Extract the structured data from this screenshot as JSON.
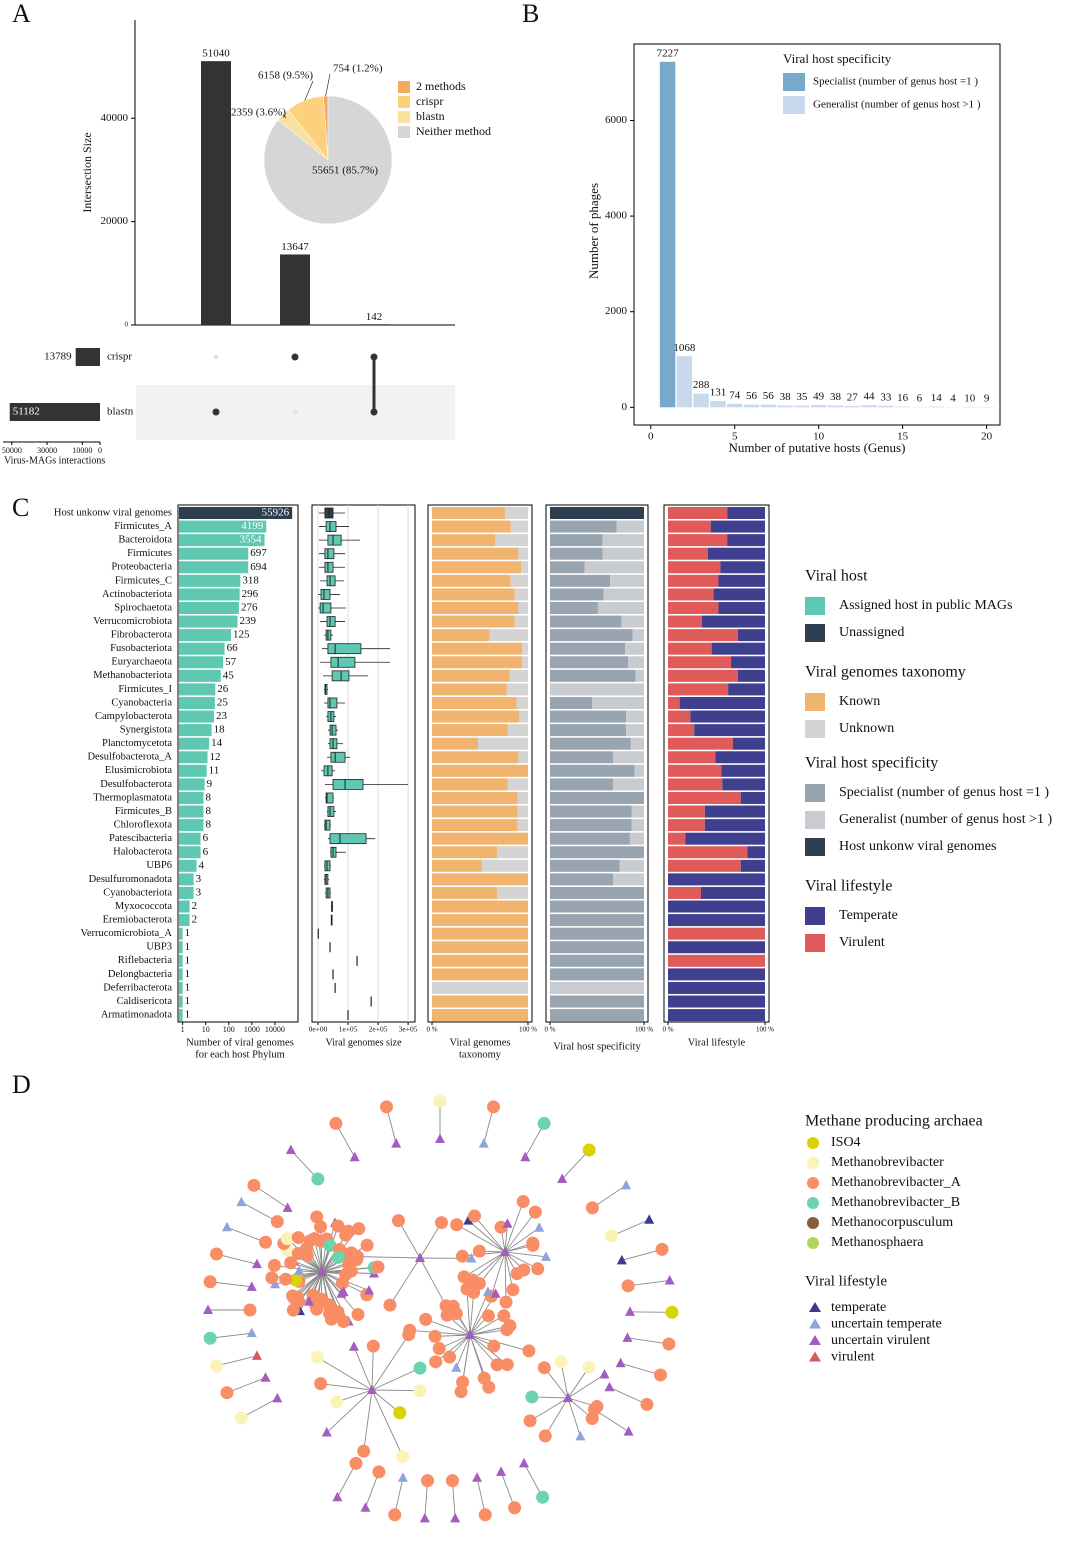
{
  "chart_data": [
    {
      "type": "upset",
      "panel": "A",
      "y_label": "Intersection Size",
      "values": [
        51040,
        13647,
        142
      ],
      "ylim": [
        0,
        59000
      ],
      "yticks": [
        0,
        20000,
        40000
      ],
      "sets": [
        "crispr",
        "blastn"
      ],
      "set_sizes": [
        13789,
        51182
      ],
      "set_xlim": [
        55000,
        0
      ],
      "set_xticks": [
        50000,
        30000,
        10000,
        0
      ],
      "set_x_label": "Virus-MAGs interactions",
      "membership": [
        [
          false,
          true
        ],
        [
          true,
          false
        ],
        [
          true,
          true
        ]
      ],
      "color": "#333333"
    },
    {
      "type": "pie",
      "categories": [
        "2 methods",
        "crispr",
        "blastn",
        "Neither method"
      ],
      "values": [
        754,
        6158,
        2359,
        55651
      ],
      "value_labels": [
        "754 (1.2%)",
        "6158 (9.5%)",
        "2359 (3.6%)",
        "55651 (85.7%)"
      ],
      "colors": [
        "#f4a95b",
        "#fbd17d",
        "#f9e2a0",
        "#d6d6d6"
      ],
      "direction": "counterclockwise"
    },
    {
      "type": "bar",
      "panel": "B",
      "orientation": "vertical",
      "x": [
        1,
        2,
        3,
        4,
        5,
        6,
        7,
        8,
        9,
        10,
        11,
        12,
        13,
        14,
        15,
        16,
        17,
        18,
        19,
        20
      ],
      "series": [
        {
          "name": "Specialist (number of genus host =1 )",
          "color": "#77a9cc",
          "values": [
            7227,
            null,
            null,
            null,
            null,
            null,
            null,
            null,
            null,
            null,
            null,
            null,
            null,
            null,
            null,
            null,
            null,
            null,
            null,
            null
          ]
        },
        {
          "name": "Generalist (number of genus host >1 )",
          "color": "#c9d9ec",
          "values": [
            null,
            1068,
            288,
            131,
            74,
            56,
            56,
            38,
            35,
            49,
            38,
            27,
            44,
            33,
            16,
            6,
            14,
            4,
            10,
            9
          ]
        }
      ],
      "legend_title": "Viral host specificity",
      "x_label": "Number of putative hosts (Genus)",
      "y_label": "Number of phages",
      "xlim": [
        -1,
        20.8
      ],
      "ylim": [
        -370,
        7600
      ],
      "xticks": [
        0,
        5,
        10,
        15,
        20
      ],
      "yticks": [
        0,
        2000,
        4000,
        6000
      ]
    },
    {
      "type": "bar",
      "panel": "C",
      "orientation": "horizontal",
      "xscale": "log",
      "categories": [
        "Host unkonw viral genomes",
        "Firmicutes_A",
        "Bacteroidota",
        "Firmicutes",
        "Proteobacteria",
        "Firmicutes_C",
        "Actinobacteriota",
        "Spirochaetota",
        "Verrucomicrobiota",
        "Fibrobacterota",
        "Fusobacteriota",
        "Euryarchaeota",
        "Methanobacteriota",
        "Firmicutes_I",
        "Cyanobacteria",
        "Campylobacterota",
        "Synergistota",
        "Planctomycetota",
        "Desulfobacterota_A",
        "Elusimicrobiota",
        "Desulfobacterota",
        "Thermoplasmatota",
        "Firmicutes_B",
        "Chloroflexota",
        "Patescibacteria",
        "Halobacterota",
        "UBP6",
        "Desulfuromonadota",
        "Cyanobacteriota",
        "Myxococcota",
        "Eremiobacterota",
        "Verrucomicrobiota_A",
        "UBP3",
        "Riflebacteria",
        "Delongbacteria",
        "Deferribacterota",
        "Caldisericota",
        "Armatimonadota"
      ],
      "series": [
        {
          "name": "Assigned host in public MAGs",
          "color": "#5ec8b2",
          "values": [
            null,
            4199,
            3554,
            697,
            694,
            318,
            296,
            276,
            239,
            125,
            66,
            57,
            45,
            26,
            25,
            23,
            18,
            14,
            12,
            11,
            9,
            8,
            8,
            8,
            6,
            6,
            4,
            3,
            3,
            2,
            2,
            1,
            1,
            1,
            1,
            1,
            1,
            1
          ]
        },
        {
          "name": "Unassigned",
          "color": "#2d3e4e",
          "values": [
            55926,
            null,
            null,
            null,
            null,
            null,
            null,
            null,
            null,
            null,
            null,
            null,
            null,
            null,
            null,
            null,
            null,
            null,
            null,
            null,
            null,
            null,
            null,
            null,
            null,
            null,
            null,
            null,
            null,
            null,
            null,
            null,
            null,
            null,
            null,
            null,
            null,
            null
          ]
        }
      ],
      "legend_title": "Viral host",
      "x_label": [
        "Number of viral genomes",
        "for each host Phylum"
      ],
      "xlim": [
        0.63,
        100000
      ],
      "xticks": [
        1,
        10,
        100,
        1000,
        10000
      ]
    },
    {
      "type": "box",
      "boxes": [
        [
          3000,
          23000,
          37000,
          50000,
          90000
        ],
        [
          3000,
          27000,
          40000,
          60000,
          103000
        ],
        [
          3000,
          33000,
          50000,
          77000,
          140000
        ],
        [
          3000,
          23000,
          33000,
          53000,
          90000
        ],
        [
          3000,
          23000,
          33000,
          50000,
          90000
        ],
        [
          7000,
          30000,
          40000,
          57000,
          87000
        ],
        [
          1000,
          10000,
          20000,
          40000,
          73000
        ],
        [
          0,
          7000,
          17000,
          43000,
          93000
        ],
        [
          7000,
          30000,
          40000,
          57000,
          90000
        ],
        [
          20000,
          27000,
          33000,
          43000,
          50000
        ],
        [
          13000,
          33000,
          57000,
          143000,
          240000
        ],
        [
          7000,
          43000,
          67000,
          123000,
          240000
        ],
        [
          17000,
          47000,
          77000,
          103000,
          167000
        ],
        [
          20000,
          23000,
          25000,
          30000,
          33000
        ],
        [
          20000,
          33000,
          40000,
          63000,
          90000
        ],
        [
          27000,
          33000,
          43000,
          53000,
          60000
        ],
        [
          33000,
          40000,
          47000,
          60000,
          67000
        ],
        [
          33000,
          40000,
          50000,
          63000,
          83000
        ],
        [
          30000,
          43000,
          57000,
          90000,
          107000
        ],
        [
          10000,
          20000,
          33000,
          47000,
          57000
        ],
        [
          23000,
          50000,
          90000,
          150000,
          300000
        ],
        [
          23000,
          27000,
          30000,
          50000,
          53000
        ],
        [
          30000,
          33000,
          40000,
          53000,
          60000
        ],
        [
          20000,
          23000,
          27000,
          40000,
          43000
        ],
        [
          33000,
          40000,
          73000,
          160000,
          190000
        ],
        [
          40000,
          43000,
          50000,
          60000,
          93000
        ],
        [
          20000,
          23000,
          30000,
          40000,
          43000
        ],
        [
          20000,
          23000,
          27000,
          33000,
          37000
        ],
        [
          23000,
          27000,
          33000,
          40000,
          43000
        ],
        [
          43000,
          45000,
          47000,
          48000,
          50000
        ],
        [
          43000,
          44000,
          45000,
          47000,
          48000
        ],
        [
          1000
        ],
        [
          40000
        ],
        [
          130000
        ],
        [
          50000
        ],
        [
          57000
        ],
        [
          177000
        ],
        [
          100000
        ]
      ],
      "colors": [
        "#2d3e4e",
        "#5ec8b2",
        "#5ec8b2",
        "#5ec8b2",
        "#5ec8b2",
        "#5ec8b2",
        "#5ec8b2",
        "#5ec8b2",
        "#5ec8b2",
        "#5ec8b2",
        "#5ec8b2",
        "#5ec8b2",
        "#5ec8b2",
        "#5ec8b2",
        "#5ec8b2",
        "#5ec8b2",
        "#5ec8b2",
        "#5ec8b2",
        "#5ec8b2",
        "#5ec8b2",
        "#5ec8b2",
        "#5ec8b2",
        "#5ec8b2",
        "#5ec8b2",
        "#5ec8b2",
        "#5ec8b2",
        "#5ec8b2",
        "#5ec8b2",
        "#5ec8b2",
        "#5ec8b2",
        "#5ec8b2",
        "#5ec8b2",
        "#5ec8b2",
        "#5ec8b2",
        "#5ec8b2",
        "#5ec8b2",
        "#5ec8b2",
        "#5ec8b2"
      ],
      "x_label": "Viral genomes size",
      "xlim": [
        -20000,
        323000
      ],
      "xticks": [
        {
          "value": 0,
          "label": "0e+00"
        },
        {
          "value": 100000,
          "label": "1e+05"
        },
        {
          "value": 200000,
          "label": "2e+05"
        },
        {
          "value": 300000,
          "label": "3e+05"
        }
      ],
      "grid": true
    },
    {
      "type": "stacked_bar",
      "legend_title": "Viral genomes taxonomy",
      "x_label": [
        "Viral genomes",
        "taxonomy"
      ],
      "series": [
        {
          "name": "Known",
          "color": "#f0b46f",
          "values": [
            76,
            82,
            66,
            90,
            93,
            82,
            86,
            90,
            86,
            60,
            94,
            94,
            81,
            78,
            88,
            91,
            79,
            48,
            90,
            100,
            79,
            89,
            89,
            89,
            100,
            68,
            52,
            100,
            68,
            100,
            100,
            100,
            100,
            100,
            100,
            0,
            100,
            100
          ]
        },
        {
          "name": "Unknown",
          "color": "#d4d4d4",
          "values": [
            24,
            18,
            34,
            10,
            7,
            18,
            14,
            10,
            14,
            40,
            6,
            6,
            19,
            22,
            12,
            9,
            21,
            52,
            10,
            0,
            21,
            11,
            11,
            11,
            0,
            32,
            48,
            0,
            32,
            0,
            0,
            0,
            0,
            0,
            0,
            100,
            0,
            0
          ]
        }
      ],
      "xlim": [
        0,
        100
      ],
      "xticks": [
        {
          "value": 0,
          "label": "0 %"
        },
        {
          "value": 100,
          "label": "100 %"
        }
      ]
    },
    {
      "type": "stacked_bar",
      "legend_title": "Viral host specificity",
      "x_label": "Viral host specificity",
      "series": [
        {
          "name": "Specialist (number of genus host =1 )",
          "color": "#98a5b0",
          "values": [
            0,
            71,
            56,
            56,
            37,
            64,
            57,
            51,
            76,
            88,
            80,
            83,
            91,
            0,
            45,
            81,
            81,
            86,
            67,
            90,
            67,
            100,
            87,
            87,
            85,
            100,
            74,
            67,
            100,
            100,
            100,
            100,
            100,
            100,
            100,
            0,
            100,
            100
          ]
        },
        {
          "name": "Generalist (number of genus host >1 )",
          "color": "#c8ccd0",
          "values": [
            0,
            29,
            44,
            44,
            63,
            36,
            43,
            49,
            24,
            12,
            20,
            17,
            9,
            100,
            55,
            19,
            19,
            14,
            33,
            10,
            33,
            0,
            13,
            13,
            15,
            0,
            26,
            33,
            0,
            0,
            0,
            0,
            0,
            0,
            0,
            100,
            0,
            0
          ]
        },
        {
          "name": "Host unkonw viral genomes",
          "color": "#2c3e50",
          "values": [
            100,
            0,
            0,
            0,
            0,
            0,
            0,
            0,
            0,
            0,
            0,
            0,
            0,
            0,
            0,
            0,
            0,
            0,
            0,
            0,
            0,
            0,
            0,
            0,
            0,
            0,
            0,
            0,
            0,
            0,
            0,
            0,
            0,
            0,
            0,
            0,
            0,
            0
          ]
        }
      ],
      "xlim": [
        0,
        100
      ],
      "xticks": [
        {
          "value": 0,
          "label": "0 %"
        },
        {
          "value": 100,
          "label": "100 %"
        }
      ]
    },
    {
      "type": "stacked_bar",
      "legend_title": "Viral lifestyle",
      "x_label": "Viral lifestyle",
      "stack_order": "reverse",
      "series": [
        {
          "name": "Temperate",
          "color": "#3f3f8f",
          "values": [
            39,
            56,
            39,
            59,
            46,
            48,
            53,
            48,
            65,
            28,
            55,
            35,
            28,
            38,
            88,
            77,
            73,
            33,
            51,
            45,
            44,
            25,
            62,
            62,
            82,
            18,
            25,
            100,
            66,
            100,
            100,
            0,
            100,
            0,
            100,
            100,
            100,
            100
          ]
        },
        {
          "name": "Virulent",
          "color": "#e05a5a",
          "values": [
            61,
            44,
            61,
            41,
            54,
            52,
            47,
            52,
            35,
            72,
            45,
            65,
            72,
            62,
            12,
            23,
            27,
            67,
            49,
            55,
            56,
            75,
            38,
            38,
            18,
            82,
            75,
            0,
            34,
            0,
            0,
            100,
            0,
            100,
            0,
            0,
            0,
            0
          ]
        }
      ],
      "xlim": [
        0,
        100
      ],
      "xticks": [
        {
          "value": 0,
          "label": "0 %"
        },
        {
          "value": 100,
          "label": "100 %"
        }
      ]
    }
  ],
  "network": {
    "panel": "D",
    "legends": [
      {
        "title": "Methane producing archaea",
        "shape": "circle",
        "items": [
          {
            "label": "ISO4",
            "color": "#d9d300"
          },
          {
            "label": "Methanobrevibacter",
            "color": "#f9f3b8"
          },
          {
            "label": "Methanobrevibacter_A",
            "color": "#f98e66"
          },
          {
            "label": "Methanobrevibacter_B",
            "color": "#6dd3ad"
          },
          {
            "label": "Methanocorpusculum",
            "color": "#8b5a3a"
          },
          {
            "label": "Methanosphaera",
            "color": "#b3d65a"
          }
        ]
      },
      {
        "title": "Viral lifestyle",
        "shape": "triangle",
        "items": [
          {
            "label": "temperate",
            "color": "#3a3d8f"
          },
          {
            "label": "uncertain temperate",
            "color": "#8fa3dc"
          },
          {
            "label": "uncertain virulent",
            "color": "#a45cc0"
          },
          {
            "label": "virulent",
            "color": "#d9585a"
          }
        ]
      }
    ]
  }
}
